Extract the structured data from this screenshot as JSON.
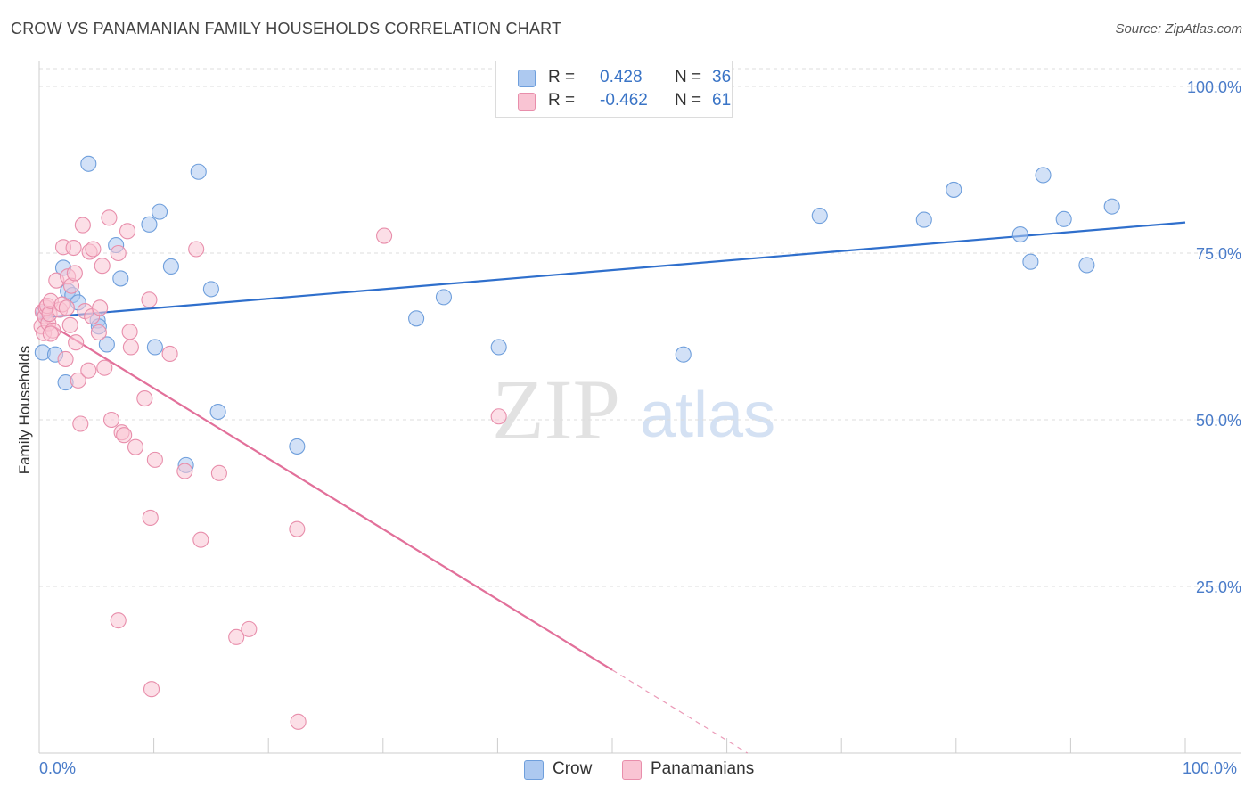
{
  "title": "CROW VS PANAMANIAN FAMILY HOUSEHOLDS CORRELATION CHART",
  "source": "Source: ZipAtlas.com",
  "watermark": {
    "zip": "ZIP",
    "atlas": "atlas"
  },
  "legend": {
    "rows": [
      {
        "r_label": "R =",
        "r_value": "0.428",
        "n_label": "N =",
        "n_value": "36",
        "color": "#adc9f0",
        "border": "#6f9fdc"
      },
      {
        "r_label": "R =",
        "r_value": "-0.462",
        "n_label": "N =",
        "n_value": "61",
        "color": "#f9c4d3",
        "border": "#e88eab"
      }
    ]
  },
  "bottom_legend": [
    {
      "label": "Crow",
      "color": "#adc9f0",
      "border": "#6f9fdc"
    },
    {
      "label": "Panamanians",
      "color": "#f9c4d3",
      "border": "#e88eab"
    }
  ],
  "x_axis_labels": {
    "left": "0.0%",
    "right": "100.0%"
  },
  "chart_data": {
    "type": "scatter",
    "title": "CROW VS PANAMANIAN FAMILY HOUSEHOLDS CORRELATION CHART",
    "xlabel": "",
    "ylabel": "Family Households",
    "xlim": [
      0,
      100
    ],
    "ylim": [
      0,
      100
    ],
    "y_ticks": [
      {
        "value": 25,
        "label": "25.0%"
      },
      {
        "value": 50,
        "label": "50.0%"
      },
      {
        "value": 75,
        "label": "75.0%"
      },
      {
        "value": 100,
        "label": "100.0%"
      }
    ],
    "series": [
      {
        "name": "Crow",
        "color": "#6f9fdc",
        "fill": "#adc9f0",
        "line_color": "#2f6fcc",
        "trend": {
          "x0": 0,
          "y0": 65.3,
          "x1": 100,
          "y1": 79.6,
          "dash_from": null
        },
        "points": [
          [
            0.3,
            60.1
          ],
          [
            1.4,
            59.8
          ],
          [
            2.1,
            72.8
          ],
          [
            2.3,
            55.6
          ],
          [
            2.5,
            69.3
          ],
          [
            2.9,
            68.7
          ],
          [
            3.4,
            67.6
          ],
          [
            4.3,
            88.4
          ],
          [
            5.1,
            64.9
          ],
          [
            5.2,
            64.0
          ],
          [
            5.9,
            61.3
          ],
          [
            6.7,
            76.2
          ],
          [
            7.1,
            71.2
          ],
          [
            9.6,
            79.3
          ],
          [
            10.1,
            60.9
          ],
          [
            10.5,
            81.2
          ],
          [
            11.5,
            73.0
          ],
          [
            12.8,
            43.2
          ],
          [
            13.9,
            87.2
          ],
          [
            15.0,
            69.6
          ],
          [
            15.6,
            51.2
          ],
          [
            22.5,
            46.0
          ],
          [
            32.9,
            65.2
          ],
          [
            35.3,
            68.4
          ],
          [
            40.1,
            60.9
          ],
          [
            56.2,
            59.8
          ],
          [
            68.1,
            80.6
          ],
          [
            77.2,
            80.0
          ],
          [
            79.8,
            84.5
          ],
          [
            85.6,
            77.8
          ],
          [
            86.5,
            73.7
          ],
          [
            87.6,
            86.7
          ],
          [
            89.4,
            80.1
          ],
          [
            91.4,
            73.2
          ],
          [
            93.6,
            82.0
          ],
          [
            0.4,
            66.0
          ]
        ]
      },
      {
        "name": "Panamanians",
        "color": "#e88eab",
        "fill": "#f9c4d3",
        "line_color": "#e2709a",
        "trend": {
          "x0": 0,
          "y0": 65.3,
          "x1": 61.8,
          "y1": 0,
          "dash_from": 50.0
        },
        "points": [
          [
            0.2,
            64.0
          ],
          [
            0.3,
            66.2
          ],
          [
            0.4,
            63.0
          ],
          [
            0.5,
            65.5
          ],
          [
            0.6,
            66.8
          ],
          [
            0.7,
            67.1
          ],
          [
            0.8,
            64.5
          ],
          [
            0.9,
            65.9
          ],
          [
            1.0,
            67.8
          ],
          [
            1.2,
            63.4
          ],
          [
            1.5,
            70.9
          ],
          [
            1.8,
            66.5
          ],
          [
            2.0,
            67.3
          ],
          [
            2.1,
            75.9
          ],
          [
            2.3,
            59.1
          ],
          [
            2.5,
            71.5
          ],
          [
            2.7,
            64.2
          ],
          [
            2.8,
            70.1
          ],
          [
            3.0,
            75.8
          ],
          [
            3.1,
            72.0
          ],
          [
            3.2,
            61.6
          ],
          [
            3.4,
            55.9
          ],
          [
            3.6,
            49.4
          ],
          [
            3.8,
            79.2
          ],
          [
            4.0,
            66.3
          ],
          [
            4.3,
            57.4
          ],
          [
            4.4,
            75.2
          ],
          [
            4.6,
            65.5
          ],
          [
            4.7,
            75.6
          ],
          [
            5.2,
            63.1
          ],
          [
            5.3,
            66.8
          ],
          [
            5.5,
            73.1
          ],
          [
            5.7,
            57.8
          ],
          [
            6.1,
            80.3
          ],
          [
            6.3,
            50.0
          ],
          [
            6.9,
            75.0
          ],
          [
            7.2,
            48.1
          ],
          [
            7.4,
            47.7
          ],
          [
            7.7,
            78.3
          ],
          [
            7.9,
            63.2
          ],
          [
            8.0,
            60.9
          ],
          [
            8.4,
            45.9
          ],
          [
            9.2,
            53.2
          ],
          [
            9.6,
            68.0
          ],
          [
            9.7,
            35.3
          ],
          [
            10.1,
            44.0
          ],
          [
            11.4,
            59.9
          ],
          [
            12.7,
            42.3
          ],
          [
            13.7,
            75.6
          ],
          [
            14.1,
            32.0
          ],
          [
            15.7,
            42.0
          ],
          [
            17.2,
            17.4
          ],
          [
            18.3,
            18.6
          ],
          [
            22.5,
            33.6
          ],
          [
            22.6,
            4.7
          ],
          [
            30.1,
            77.6
          ],
          [
            9.8,
            9.6
          ],
          [
            6.9,
            19.9
          ],
          [
            40.1,
            50.5
          ],
          [
            1.0,
            62.9
          ],
          [
            2.4,
            66.8
          ]
        ]
      }
    ]
  }
}
